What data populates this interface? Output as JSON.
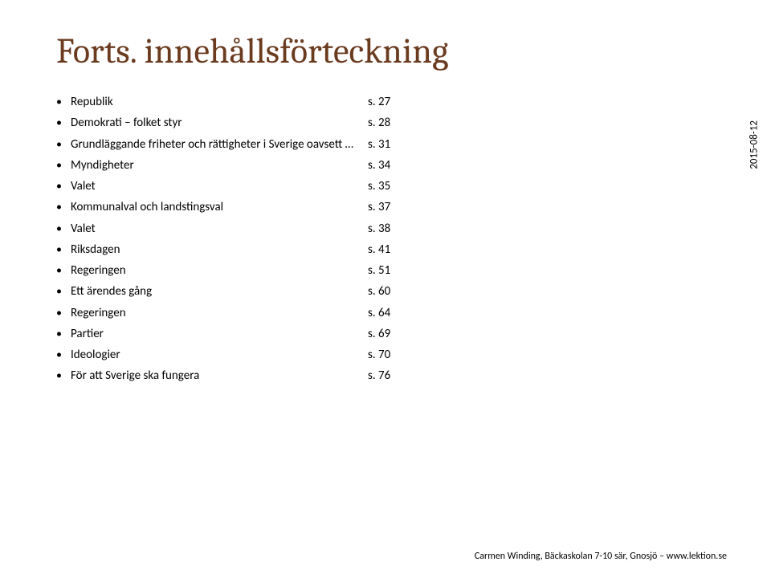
{
  "title": "Forts. innehållsförteckning",
  "items": [
    {
      "label": "Republik",
      "page": "s. 27"
    },
    {
      "label": "Demokrati – folket styr",
      "page": "s. 28"
    },
    {
      "label": "Grundläggande friheter och rättigheter i Sverige oavsett …",
      "page": "s. 31"
    },
    {
      "label": "Myndigheter",
      "page": "s. 34"
    },
    {
      "label": "Valet",
      "page": "s. 35"
    },
    {
      "label": "Kommunalval och landstingsval",
      "page": "s. 37"
    },
    {
      "label": "Valet",
      "page": "s. 38"
    },
    {
      "label": "Riksdagen",
      "page": "s. 41"
    },
    {
      "label": "Regeringen",
      "page": "s. 51"
    },
    {
      "label": "Ett ärendes gång",
      "page": "s. 60"
    },
    {
      "label": "Regeringen",
      "page": "s. 64"
    },
    {
      "label": "Partier",
      "page": "s. 69"
    },
    {
      "label": "Ideologier",
      "page": "s. 70"
    },
    {
      "label": "För att Sverige ska fungera",
      "page": "s. 76"
    }
  ],
  "side_date": "2015-08-12",
  "footer": "Carmen Winding, Bäckaskolan 7-10 sär, Gnosjö – www.lektion.se",
  "colors": {
    "title_color": "#6a3b1f",
    "text_color": "#000000",
    "background": "#ffffff"
  },
  "fonts": {
    "title_family": "Cambria, Times New Roman, Georgia, serif",
    "title_size_pt": 33,
    "body_family": "Calibri, Arial, sans-serif",
    "body_size_pt": 11,
    "footer_size_pt": 9
  }
}
